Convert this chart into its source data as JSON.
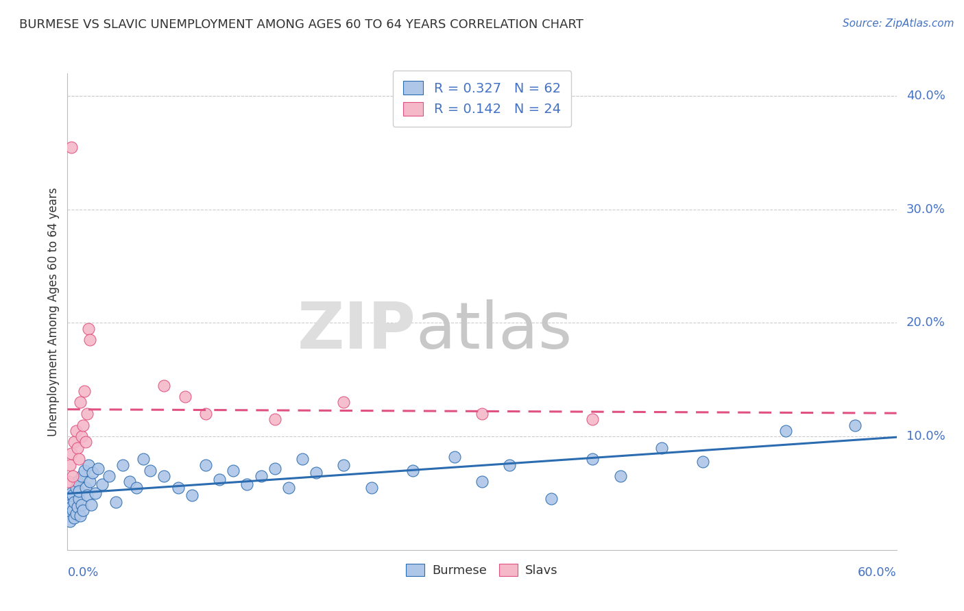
{
  "title": "BURMESE VS SLAVIC UNEMPLOYMENT AMONG AGES 60 TO 64 YEARS CORRELATION CHART",
  "source": "Source: ZipAtlas.com",
  "ylabel": "Unemployment Among Ages 60 to 64 years",
  "legend_burmese": "Burmese",
  "legend_slavs": "Slavs",
  "R_burmese": 0.327,
  "N_burmese": 62,
  "R_slavs": 0.142,
  "N_slavs": 24,
  "xlim": [
    0.0,
    0.6
  ],
  "ylim": [
    0.0,
    0.42
  ],
  "burmese_color": "#AEC6E8",
  "slavs_color": "#F4B8C8",
  "burmese_line_color": "#2B6CB0",
  "slavs_line_color": "#E05080",
  "background_color": "#FFFFFF",
  "grid_color": "#CCCCCC",
  "burmese_x": [
    0.001,
    0.001,
    0.002,
    0.002,
    0.003,
    0.003,
    0.004,
    0.004,
    0.005,
    0.005,
    0.006,
    0.006,
    0.007,
    0.007,
    0.008,
    0.008,
    0.009,
    0.01,
    0.01,
    0.011,
    0.012,
    0.013,
    0.014,
    0.015,
    0.016,
    0.017,
    0.018,
    0.02,
    0.022,
    0.025,
    0.03,
    0.035,
    0.04,
    0.045,
    0.05,
    0.055,
    0.06,
    0.07,
    0.08,
    0.09,
    0.1,
    0.11,
    0.12,
    0.13,
    0.14,
    0.15,
    0.16,
    0.17,
    0.18,
    0.2,
    0.22,
    0.25,
    0.28,
    0.3,
    0.32,
    0.35,
    0.38,
    0.4,
    0.43,
    0.46,
    0.52,
    0.57
  ],
  "burmese_y": [
    0.03,
    0.045,
    0.025,
    0.04,
    0.038,
    0.05,
    0.035,
    0.048,
    0.042,
    0.028,
    0.055,
    0.032,
    0.06,
    0.038,
    0.045,
    0.052,
    0.03,
    0.065,
    0.04,
    0.035,
    0.07,
    0.055,
    0.048,
    0.075,
    0.06,
    0.04,
    0.068,
    0.05,
    0.072,
    0.058,
    0.065,
    0.042,
    0.075,
    0.06,
    0.055,
    0.08,
    0.07,
    0.065,
    0.055,
    0.048,
    0.075,
    0.062,
    0.07,
    0.058,
    0.065,
    0.072,
    0.055,
    0.08,
    0.068,
    0.075,
    0.055,
    0.07,
    0.082,
    0.06,
    0.075,
    0.045,
    0.08,
    0.065,
    0.09,
    0.078,
    0.105,
    0.11
  ],
  "slavs_x": [
    0.001,
    0.002,
    0.003,
    0.004,
    0.005,
    0.006,
    0.007,
    0.008,
    0.009,
    0.01,
    0.011,
    0.012,
    0.013,
    0.014,
    0.015,
    0.016,
    0.07,
    0.085,
    0.1,
    0.15,
    0.2,
    0.3,
    0.38,
    0.003
  ],
  "slavs_y": [
    0.06,
    0.075,
    0.085,
    0.065,
    0.095,
    0.105,
    0.09,
    0.08,
    0.13,
    0.1,
    0.11,
    0.14,
    0.095,
    0.12,
    0.195,
    0.185,
    0.145,
    0.135,
    0.12,
    0.115,
    0.13,
    0.12,
    0.115,
    0.355
  ],
  "ytick_vals": [
    0.1,
    0.2,
    0.3,
    0.4
  ],
  "ytick_labels": [
    "10.0%",
    "20.0%",
    "30.0%",
    "40.0%"
  ]
}
